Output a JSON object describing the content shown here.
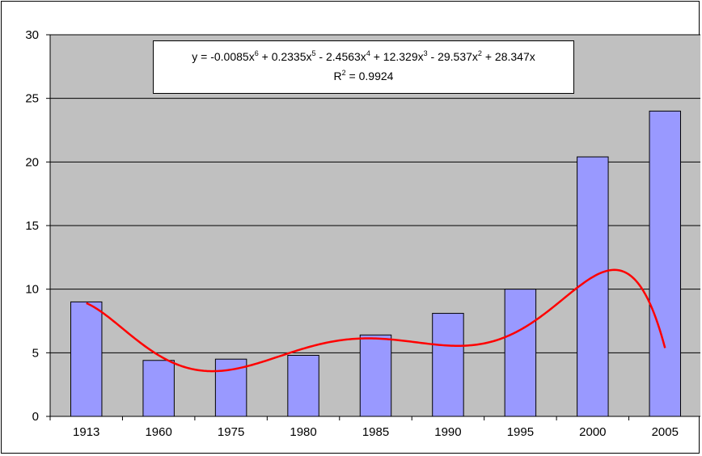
{
  "chart_data": {
    "type": "bar",
    "title": "",
    "xlabel": "",
    "ylabel": "",
    "categories": [
      "1913",
      "1960",
      "1975",
      "1980",
      "1985",
      "1990",
      "1995",
      "2000",
      "2005"
    ],
    "values": [
      9.0,
      4.4,
      4.5,
      4.8,
      6.4,
      8.1,
      10.0,
      20.4,
      24.0
    ],
    "ylim": [
      0,
      30
    ],
    "yticks": [
      "0",
      "5",
      "10",
      "15",
      "20",
      "25",
      "30"
    ],
    "grid": true,
    "legend": "none",
    "trendline": {
      "type": "polynomial",
      "order": 6,
      "equation": {
        "prefix": "y = ",
        "coefficients": [
          {
            "text": "-0.0085x",
            "power": "6",
            "joiner": " + "
          },
          {
            "text": "0.2335x",
            "power": "5",
            "joiner": " - "
          },
          {
            "text": "2.4563x",
            "power": "4",
            "joiner": " + "
          },
          {
            "text": "12.329x",
            "power": "3",
            "joiner": " - "
          },
          {
            "text": "29.537x",
            "power": "2",
            "joiner": " + "
          },
          {
            "text": "28.347x",
            "power": "",
            "joiner": ""
          }
        ]
      },
      "r2_prefix": "R",
      "r2_power": "2",
      "r2_value": " = 0.9924"
    },
    "colors": {
      "plot_area": "#c0c0c0",
      "bar_fill": "#9999ff",
      "bar_stroke": "#000000",
      "trendline": "#ff0000",
      "grid": "#000000"
    }
  }
}
